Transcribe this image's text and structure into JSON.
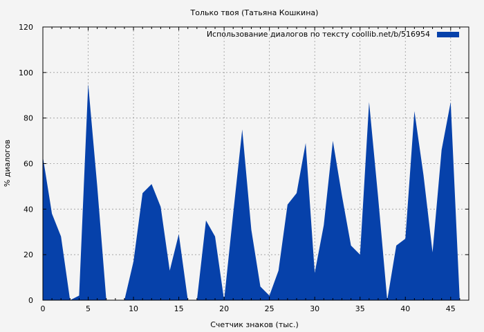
{
  "chart_data": {
    "type": "area",
    "title": "Только твоя (Татьяна Кошкина)",
    "xlabel": "Счетчик знаков (тыс.)",
    "ylabel": "% диалогов",
    "xlim": [
      0,
      47
    ],
    "ylim": [
      0,
      120
    ],
    "xticks": [
      0,
      5,
      10,
      15,
      20,
      25,
      30,
      35,
      40,
      45
    ],
    "yticks": [
      0,
      20,
      40,
      60,
      80,
      100,
      120
    ],
    "grid": true,
    "legend_position": "top-right",
    "series": [
      {
        "name": "Использование диалогов по тексту  coollib.net/b/516954",
        "color": "#0641aa",
        "x": [
          0,
          1,
          2,
          3,
          4,
          5,
          6,
          7,
          8,
          9,
          10,
          11,
          12,
          13,
          14,
          15,
          16,
          17,
          18,
          19,
          20,
          21,
          22,
          23,
          24,
          25,
          26,
          27,
          28,
          29,
          30,
          31,
          32,
          33,
          34,
          35,
          36,
          37,
          38,
          39,
          40,
          41,
          42,
          43,
          44,
          45,
          46
        ],
        "y": [
          63,
          38,
          28,
          0,
          2,
          95,
          50,
          0,
          0,
          0,
          17,
          47,
          51,
          41,
          13,
          29,
          0,
          0,
          35,
          28,
          0,
          38,
          75,
          31,
          6,
          2,
          13,
          42,
          47,
          69,
          12,
          33,
          70,
          46,
          24,
          20,
          87,
          45,
          0,
          24,
          27,
          83,
          55,
          21,
          66,
          87,
          0
        ]
      }
    ]
  }
}
